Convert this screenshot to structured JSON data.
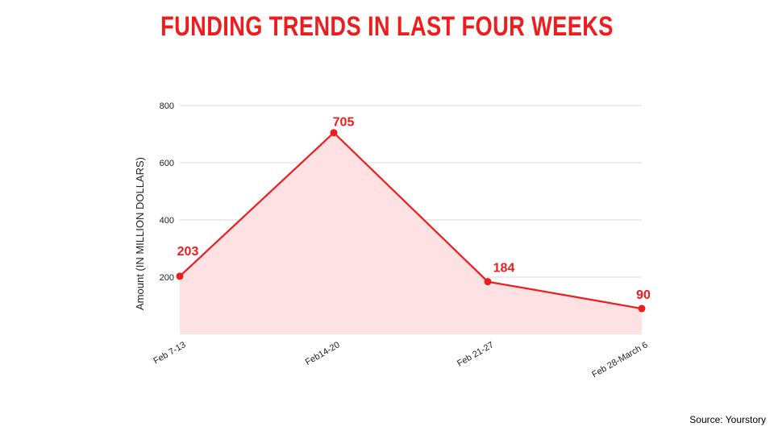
{
  "colors": {
    "accent": "#ee1c1c",
    "area_fill": "#fde1e3",
    "grid": "#d9d9d9",
    "text": "#222222"
  },
  "source": "Source: Yourstory",
  "chart_data": {
    "type": "area",
    "title": "FUNDING TRENDS IN LAST FOUR WEEKS",
    "xlabel": "",
    "ylabel": "Amount (IN MILLION DOLLARS)",
    "categories": [
      "Feb 7-13",
      "Feb14-20",
      "Feb 21-27",
      "Feb 28-March 6"
    ],
    "values": [
      203,
      705,
      184,
      90
    ],
    "data_labels": [
      "203",
      "705",
      "184",
      "90"
    ],
    "yticks": [
      200,
      400,
      600,
      800
    ],
    "ylim": [
      0,
      800
    ],
    "grid": true,
    "legend": "none"
  }
}
